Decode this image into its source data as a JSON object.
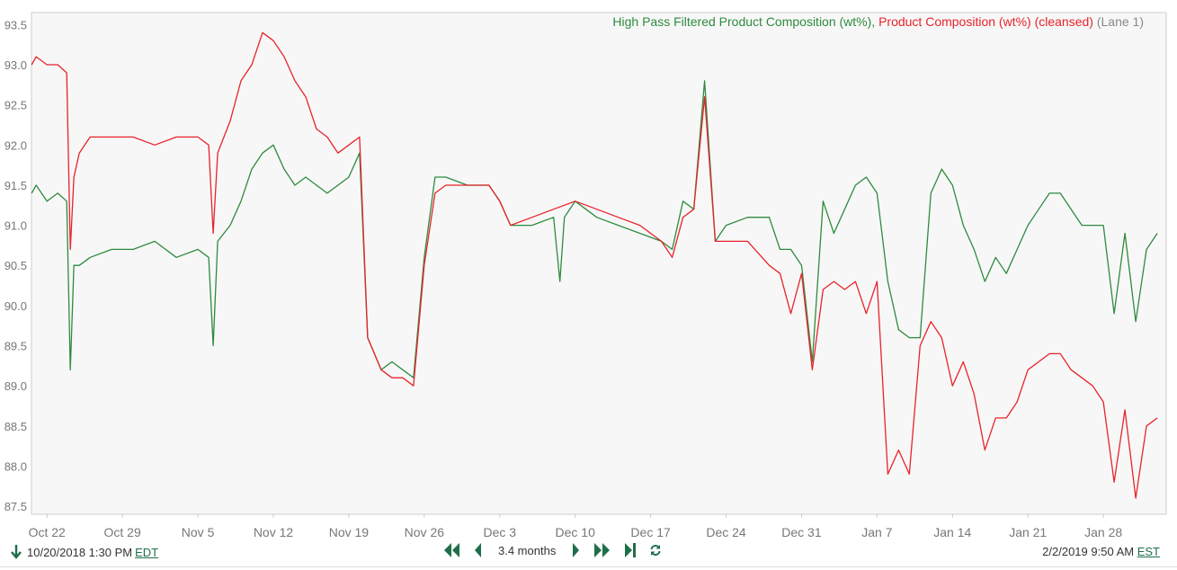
{
  "legend": {
    "series1": "High Pass Filtered Product Composition (wt%),",
    "series2": "Product Composition (wt%) (cleansed)",
    "suffix": "(Lane 1)"
  },
  "footer": {
    "start_time": "10/20/2018 1:30 PM",
    "start_tz": "EDT",
    "range_label": "3.4 months",
    "end_time": "2/2/2019 9:50 AM",
    "end_tz": "EST",
    "icons": [
      "arrow-down-icon",
      "fast-backward-icon",
      "step-backward-icon",
      "step-forward-icon",
      "fast-forward-icon",
      "skip-to-end-icon",
      "refresh-icon"
    ]
  },
  "colors": {
    "green": "#2e8b3e",
    "red": "#e8232a",
    "accent": "#1f6e4a",
    "plot_bg": "#f7f7f7"
  },
  "chart_data": {
    "type": "line",
    "x_range": [
      "2018-10-20T13:30",
      "2019-02-02T09:50"
    ],
    "ylim": [
      87.4,
      93.65
    ],
    "yticks": [
      87.5,
      88.0,
      88.5,
      89.0,
      89.5,
      90.0,
      90.5,
      91.0,
      91.5,
      92.0,
      92.5,
      93.0,
      93.5
    ],
    "xticks": [
      {
        "date": "2018-10-22",
        "label": "Oct 22"
      },
      {
        "date": "2018-10-29",
        "label": "Oct 29"
      },
      {
        "date": "2018-11-05",
        "label": "Nov 5"
      },
      {
        "date": "2018-11-12",
        "label": "Nov 12"
      },
      {
        "date": "2018-11-19",
        "label": "Nov 19"
      },
      {
        "date": "2018-11-26",
        "label": "Nov 26"
      },
      {
        "date": "2018-12-03",
        "label": "Dec 3"
      },
      {
        "date": "2018-12-10",
        "label": "Dec 10"
      },
      {
        "date": "2018-12-17",
        "label": "Dec 17"
      },
      {
        "date": "2018-12-24",
        "label": "Dec 24"
      },
      {
        "date": "2018-12-31",
        "label": "Dec 31"
      },
      {
        "date": "2019-01-07",
        "label": "Jan 7"
      },
      {
        "date": "2019-01-14",
        "label": "Jan 14"
      },
      {
        "date": "2019-01-21",
        "label": "Jan 21"
      },
      {
        "date": "2019-01-28",
        "label": "Jan 28"
      }
    ],
    "grid": false,
    "legend_position": "top-right",
    "series": [
      {
        "name": "High Pass Filtered Product Composition (wt%)",
        "color": "#2e8b3e",
        "points": [
          [
            "2018-10-20T14",
            91.4
          ],
          [
            "2018-10-21",
            91.5
          ],
          [
            "2018-10-22",
            91.3
          ],
          [
            "2018-10-23",
            91.4
          ],
          [
            "2018-10-23T20",
            91.3
          ],
          [
            "2018-10-24T04",
            89.2
          ],
          [
            "2018-10-24T12",
            90.5
          ],
          [
            "2018-10-25",
            90.5
          ],
          [
            "2018-10-26",
            90.6
          ],
          [
            "2018-10-28",
            90.7
          ],
          [
            "2018-10-30",
            90.7
          ],
          [
            "2018-11-01",
            90.8
          ],
          [
            "2018-11-03",
            90.6
          ],
          [
            "2018-11-05",
            90.7
          ],
          [
            "2018-11-06",
            90.6
          ],
          [
            "2018-11-06T10",
            89.5
          ],
          [
            "2018-11-06T20",
            90.8
          ],
          [
            "2018-11-08",
            91.0
          ],
          [
            "2018-11-09",
            91.3
          ],
          [
            "2018-11-10",
            91.7
          ],
          [
            "2018-11-11",
            91.9
          ],
          [
            "2018-11-12",
            92.0
          ],
          [
            "2018-11-13",
            91.7
          ],
          [
            "2018-11-14",
            91.5
          ],
          [
            "2018-11-15",
            91.6
          ],
          [
            "2018-11-16",
            91.5
          ],
          [
            "2018-11-17",
            91.4
          ],
          [
            "2018-11-18",
            91.5
          ],
          [
            "2018-11-19",
            91.6
          ],
          [
            "2018-11-20",
            91.9
          ],
          [
            "2018-11-20T18",
            89.6
          ],
          [
            "2018-11-22",
            89.2
          ],
          [
            "2018-11-23",
            89.3
          ],
          [
            "2018-11-24",
            89.2
          ],
          [
            "2018-11-25",
            89.1
          ],
          [
            "2018-11-26",
            90.6
          ],
          [
            "2018-11-27",
            91.6
          ],
          [
            "2018-11-28",
            91.6
          ],
          [
            "2018-11-30",
            91.5
          ],
          [
            "2018-12-02",
            91.5
          ],
          [
            "2018-12-03",
            91.3
          ],
          [
            "2018-12-04",
            91.0
          ],
          [
            "2018-12-06",
            91.0
          ],
          [
            "2018-12-08",
            91.1
          ],
          [
            "2018-12-08T14",
            90.3
          ],
          [
            "2018-12-09",
            91.1
          ],
          [
            "2018-12-10",
            91.3
          ],
          [
            "2018-12-12",
            91.1
          ],
          [
            "2018-12-14",
            91.0
          ],
          [
            "2018-12-16",
            90.9
          ],
          [
            "2018-12-18",
            90.8
          ],
          [
            "2018-12-19",
            90.7
          ],
          [
            "2018-12-20",
            91.3
          ],
          [
            "2018-12-21",
            91.2
          ],
          [
            "2018-12-22",
            92.8
          ],
          [
            "2018-12-23",
            90.8
          ],
          [
            "2018-12-24",
            91.0
          ],
          [
            "2018-12-26",
            91.1
          ],
          [
            "2018-12-28",
            91.1
          ],
          [
            "2018-12-29",
            90.7
          ],
          [
            "2018-12-30",
            90.7
          ],
          [
            "2018-12-31",
            90.5
          ],
          [
            "2019-01-01",
            89.3
          ],
          [
            "2019-01-02",
            91.3
          ],
          [
            "2019-01-03",
            90.9
          ],
          [
            "2019-01-04",
            91.2
          ],
          [
            "2019-01-05",
            91.5
          ],
          [
            "2019-01-06",
            91.6
          ],
          [
            "2019-01-07",
            91.4
          ],
          [
            "2019-01-08",
            90.3
          ],
          [
            "2019-01-09",
            89.7
          ],
          [
            "2019-01-10",
            89.6
          ],
          [
            "2019-01-11",
            89.6
          ],
          [
            "2019-01-12",
            91.4
          ],
          [
            "2019-01-13",
            91.7
          ],
          [
            "2019-01-14",
            91.5
          ],
          [
            "2019-01-15",
            91.0
          ],
          [
            "2019-01-16",
            90.7
          ],
          [
            "2019-01-17",
            90.3
          ],
          [
            "2019-01-18",
            90.6
          ],
          [
            "2019-01-19",
            90.4
          ],
          [
            "2019-01-20",
            90.7
          ],
          [
            "2019-01-21",
            91.0
          ],
          [
            "2019-01-22",
            91.2
          ],
          [
            "2019-01-23",
            91.4
          ],
          [
            "2019-01-24",
            91.4
          ],
          [
            "2019-01-25",
            91.2
          ],
          [
            "2019-01-26",
            91.0
          ],
          [
            "2019-01-27",
            91.0
          ],
          [
            "2019-01-28",
            91.0
          ],
          [
            "2019-01-29",
            89.9
          ],
          [
            "2019-01-30",
            90.9
          ],
          [
            "2019-01-31",
            89.8
          ],
          [
            "2019-02-01",
            90.7
          ],
          [
            "2019-02-02",
            90.9
          ]
        ]
      },
      {
        "name": "Product Composition (wt%) (cleansed)",
        "color": "#e8232a",
        "points": [
          [
            "2018-10-20T14",
            93.0
          ],
          [
            "2018-10-21",
            93.1
          ],
          [
            "2018-10-22",
            93.0
          ],
          [
            "2018-10-23",
            93.0
          ],
          [
            "2018-10-23T20",
            92.9
          ],
          [
            "2018-10-24T04",
            90.7
          ],
          [
            "2018-10-24T12",
            91.6
          ],
          [
            "2018-10-25",
            91.9
          ],
          [
            "2018-10-26",
            92.1
          ],
          [
            "2018-10-28",
            92.1
          ],
          [
            "2018-10-30",
            92.1
          ],
          [
            "2018-11-01",
            92.0
          ],
          [
            "2018-11-03",
            92.1
          ],
          [
            "2018-11-05",
            92.1
          ],
          [
            "2018-11-06",
            92.0
          ],
          [
            "2018-11-06T10",
            90.9
          ],
          [
            "2018-11-06T20",
            91.9
          ],
          [
            "2018-11-08",
            92.3
          ],
          [
            "2018-11-09",
            92.8
          ],
          [
            "2018-11-10",
            93.0
          ],
          [
            "2018-11-11",
            93.4
          ],
          [
            "2018-11-12",
            93.3
          ],
          [
            "2018-11-13",
            93.1
          ],
          [
            "2018-11-14",
            92.8
          ],
          [
            "2018-11-15",
            92.6
          ],
          [
            "2018-11-16",
            92.2
          ],
          [
            "2018-11-17",
            92.1
          ],
          [
            "2018-11-18",
            91.9
          ],
          [
            "2018-11-19",
            92.0
          ],
          [
            "2018-11-20",
            92.1
          ],
          [
            "2018-11-20T18",
            89.6
          ],
          [
            "2018-11-22",
            89.2
          ],
          [
            "2018-11-23",
            89.1
          ],
          [
            "2018-11-24",
            89.1
          ],
          [
            "2018-11-25",
            89.0
          ],
          [
            "2018-11-26",
            90.5
          ],
          [
            "2018-11-27",
            91.4
          ],
          [
            "2018-11-28",
            91.5
          ],
          [
            "2018-11-30",
            91.5
          ],
          [
            "2018-12-02",
            91.5
          ],
          [
            "2018-12-03",
            91.3
          ],
          [
            "2018-12-04",
            91.0
          ],
          [
            "2018-12-06",
            91.1
          ],
          [
            "2018-12-08",
            91.2
          ],
          [
            "2018-12-10",
            91.3
          ],
          [
            "2018-12-12",
            91.2
          ],
          [
            "2018-12-14",
            91.1
          ],
          [
            "2018-12-16",
            91.0
          ],
          [
            "2018-12-18",
            90.8
          ],
          [
            "2018-12-19",
            90.6
          ],
          [
            "2018-12-20",
            91.1
          ],
          [
            "2018-12-21",
            91.2
          ],
          [
            "2018-12-22",
            92.6
          ],
          [
            "2018-12-23",
            90.8
          ],
          [
            "2018-12-24",
            90.8
          ],
          [
            "2018-12-26",
            90.8
          ],
          [
            "2018-12-28",
            90.5
          ],
          [
            "2018-12-29",
            90.4
          ],
          [
            "2018-12-30",
            89.9
          ],
          [
            "2018-12-31",
            90.4
          ],
          [
            "2019-01-01",
            89.2
          ],
          [
            "2019-01-02",
            90.2
          ],
          [
            "2019-01-03",
            90.3
          ],
          [
            "2019-01-04",
            90.2
          ],
          [
            "2019-01-05",
            90.3
          ],
          [
            "2019-01-06",
            89.9
          ],
          [
            "2019-01-07",
            90.3
          ],
          [
            "2019-01-08",
            87.9
          ],
          [
            "2019-01-09",
            88.2
          ],
          [
            "2019-01-10",
            87.9
          ],
          [
            "2019-01-11",
            89.5
          ],
          [
            "2019-01-12",
            89.8
          ],
          [
            "2019-01-13",
            89.6
          ],
          [
            "2019-01-14",
            89.0
          ],
          [
            "2019-01-15",
            89.3
          ],
          [
            "2019-01-16",
            88.9
          ],
          [
            "2019-01-17",
            88.2
          ],
          [
            "2019-01-18",
            88.6
          ],
          [
            "2019-01-19",
            88.6
          ],
          [
            "2019-01-20",
            88.8
          ],
          [
            "2019-01-21",
            89.2
          ],
          [
            "2019-01-22",
            89.3
          ],
          [
            "2019-01-23",
            89.4
          ],
          [
            "2019-01-24",
            89.4
          ],
          [
            "2019-01-25",
            89.2
          ],
          [
            "2019-01-26",
            89.1
          ],
          [
            "2019-01-27",
            89.0
          ],
          [
            "2019-01-28",
            88.8
          ],
          [
            "2019-01-29",
            87.8
          ],
          [
            "2019-01-30",
            88.7
          ],
          [
            "2019-01-31",
            87.6
          ],
          [
            "2019-02-01",
            88.5
          ],
          [
            "2019-02-02",
            88.6
          ]
        ]
      }
    ]
  }
}
